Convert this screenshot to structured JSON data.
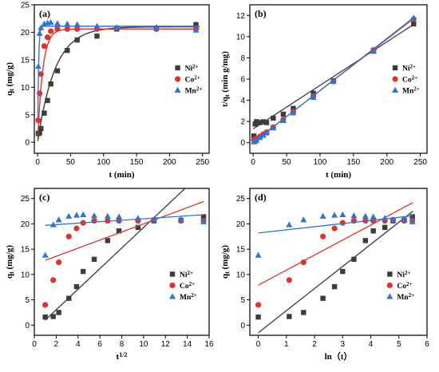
{
  "colors": {
    "ni": "#3c3c3c",
    "co": "#e0332e",
    "mn": "#2e74d6"
  },
  "chart_data": [
    {
      "panel": "(a)",
      "type": "scatter",
      "xlabel": "t (min)",
      "ylabel_html": "q<sub>t</sub> (mg/g)",
      "ylabel": "qt (mg/g)",
      "xlim": [
        -5,
        260
      ],
      "ylim": [
        -2,
        25
      ],
      "xticks": [
        0,
        50,
        100,
        150,
        200,
        250
      ],
      "yticks": [
        0,
        5,
        10,
        15,
        20,
        25
      ],
      "legend": "right-middle",
      "series": [
        {
          "name": "Ni2+",
          "marker": "square",
          "color": "#3c3c3c",
          "x": [
            1,
            3,
            5,
            10,
            15,
            20,
            30,
            45,
            60,
            90,
            120,
            180,
            240
          ],
          "y": [
            1.6,
            1.7,
            2.5,
            5.3,
            7.6,
            10.6,
            13.0,
            16.7,
            18.6,
            19.3,
            20.6,
            20.7,
            21.4
          ],
          "curve": {
            "type": "pfo",
            "qe": 21.0,
            "k": 0.038
          }
        },
        {
          "name": "Co2+",
          "marker": "circle",
          "color": "#e0332e",
          "x": [
            1,
            3,
            5,
            10,
            15,
            20,
            30,
            45,
            60,
            90,
            120,
            180,
            240
          ],
          "y": [
            4.0,
            8.9,
            12.4,
            17.5,
            19.1,
            20.2,
            20.6,
            20.6,
            20.6,
            20.6,
            20.8,
            20.6,
            20.6
          ],
          "curve": {
            "type": "pfo",
            "qe": 20.6,
            "k": 0.13
          }
        },
        {
          "name": "Mn2+",
          "marker": "triangle",
          "color": "#2e74d6",
          "x": [
            1,
            3,
            5,
            10,
            15,
            20,
            30,
            45,
            60,
            90,
            120,
            180,
            240
          ],
          "y": [
            13.8,
            19.8,
            20.8,
            21.5,
            21.7,
            21.8,
            21.6,
            21.5,
            21.4,
            21.1,
            20.8,
            20.9,
            20.4
          ],
          "curve": {
            "type": "pfo",
            "qe": 21.1,
            "k": 0.75
          }
        }
      ]
    },
    {
      "panel": "(b)",
      "type": "scatter",
      "xlabel": "t (min)",
      "ylabel_html": "t/q<sub>t</sub> (min g/mg)",
      "ylabel": "t/qt (min g/mg)",
      "xlim": [
        -5,
        260
      ],
      "ylim": [
        -1,
        13
      ],
      "xticks": [
        0,
        50,
        100,
        150,
        200,
        250
      ],
      "yticks": [
        0,
        2,
        4,
        6,
        8,
        10,
        12
      ],
      "legend": "right-middle",
      "series": [
        {
          "name": "Ni2+",
          "marker": "square",
          "color": "#3c3c3c",
          "x": [
            1,
            3,
            5,
            10,
            15,
            20,
            30,
            45,
            60,
            90,
            120,
            180,
            240
          ],
          "y": [
            0.63,
            1.76,
            1.98,
            1.89,
            1.97,
            1.89,
            2.31,
            2.69,
            3.23,
            4.66,
            5.83,
            8.7,
            11.2
          ],
          "line": [
            [
              0,
              1.3
            ],
            [
              240,
              11.15
            ]
          ]
        },
        {
          "name": "Co2+",
          "marker": "circle",
          "color": "#e0332e",
          "x": [
            1,
            3,
            5,
            10,
            15,
            20,
            30,
            45,
            60,
            90,
            120,
            180,
            240
          ],
          "y": [
            0.25,
            0.34,
            0.4,
            0.57,
            0.79,
            0.99,
            1.46,
            2.18,
            2.91,
            4.37,
            5.77,
            8.74,
            11.65
          ],
          "line": [
            [
              0,
              0.05
            ],
            [
              240,
              11.7
            ]
          ]
        },
        {
          "name": "Mn2+",
          "marker": "triangle",
          "color": "#2e74d6",
          "x": [
            1,
            3,
            5,
            10,
            15,
            20,
            30,
            45,
            60,
            90,
            120,
            180,
            240
          ],
          "y": [
            0.07,
            0.15,
            0.24,
            0.47,
            0.69,
            0.92,
            1.39,
            2.09,
            2.8,
            4.27,
            5.77,
            8.61,
            11.76
          ],
          "line": [
            [
              0,
              0.0
            ],
            [
              240,
              11.8
            ]
          ]
        }
      ]
    },
    {
      "panel": "(c)",
      "type": "scatter",
      "xlabel_html": "t<sup>1/2</sup>",
      "xlabel": "t1/2",
      "ylabel_html": "q<sub>t</sub> (mg/g)",
      "ylabel": "qt (mg/g)",
      "xlim": [
        0,
        16
      ],
      "ylim": [
        -2,
        27
      ],
      "xticks": [
        0,
        2,
        4,
        6,
        8,
        10,
        12,
        14,
        16
      ],
      "yticks": [
        0,
        5,
        10,
        15,
        20,
        25
      ],
      "legend": "right-lower",
      "series": [
        {
          "name": "Ni2+",
          "marker": "square",
          "color": "#3c3c3c",
          "x": [
            1.0,
            1.73,
            2.24,
            3.16,
            3.87,
            4.47,
            5.48,
            6.71,
            7.75,
            9.49,
            10.95,
            13.42,
            15.49
          ],
          "y": [
            1.6,
            1.7,
            2.5,
            5.3,
            7.6,
            10.6,
            13.0,
            16.7,
            18.6,
            19.3,
            20.6,
            20.7,
            21.4
          ],
          "line": [
            [
              1.0,
              1.0
            ],
            [
              13.8,
              27
            ]
          ]
        },
        {
          "name": "Co2+",
          "marker": "circle",
          "color": "#e0332e",
          "x": [
            1.0,
            1.73,
            2.24,
            3.16,
            3.87,
            4.47,
            5.48,
            6.71,
            7.75,
            9.49,
            10.95,
            13.42,
            15.49
          ],
          "y": [
            4.0,
            8.9,
            12.4,
            17.5,
            19.1,
            20.2,
            20.6,
            20.6,
            20.6,
            20.6,
            20.8,
            20.6,
            20.6
          ],
          "line": [
            [
              1.0,
              12.8
            ],
            [
              15.5,
              24.4
            ]
          ]
        },
        {
          "name": "Mn2+",
          "marker": "triangle",
          "color": "#2e74d6",
          "x": [
            1.0,
            1.73,
            2.24,
            3.16,
            3.87,
            4.47,
            5.48,
            6.71,
            7.75,
            9.49,
            10.95,
            13.42,
            15.49
          ],
          "y": [
            13.8,
            19.8,
            20.8,
            21.5,
            21.7,
            21.8,
            21.6,
            21.5,
            21.4,
            21.1,
            20.8,
            20.9,
            20.4
          ],
          "line": [
            [
              1.0,
              19.7
            ],
            [
              15.5,
              21.8
            ]
          ]
        }
      ]
    },
    {
      "panel": "(d)",
      "type": "scatter",
      "xlabel": "ln（t）",
      "ylabel_html": "q<sub>t</sub> (mg/g)",
      "ylabel": "qt (mg/g)",
      "xlim": [
        -0.3,
        6
      ],
      "ylim": [
        -2,
        27
      ],
      "xticks": [
        0,
        1,
        2,
        3,
        4,
        5,
        6
      ],
      "yticks": [
        0,
        5,
        10,
        15,
        20,
        25
      ],
      "legend": "right-lower",
      "series": [
        {
          "name": "Ni2+",
          "marker": "square",
          "color": "#3c3c3c",
          "x": [
            0,
            1.1,
            1.61,
            2.3,
            2.71,
            3.0,
            3.4,
            3.81,
            4.09,
            4.5,
            4.79,
            5.19,
            5.48
          ],
          "y": [
            1.6,
            1.7,
            2.5,
            5.3,
            7.6,
            10.6,
            13.0,
            16.7,
            18.6,
            19.3,
            20.6,
            20.7,
            21.4
          ],
          "line": [
            [
              0,
              -1.5
            ],
            [
              5.5,
              22.5
            ]
          ]
        },
        {
          "name": "Co2+",
          "marker": "circle",
          "color": "#e0332e",
          "x": [
            0,
            1.1,
            1.61,
            2.3,
            2.71,
            3.0,
            3.4,
            3.81,
            4.09,
            4.5,
            4.79,
            5.19,
            5.48
          ],
          "y": [
            4.0,
            8.9,
            12.4,
            17.5,
            19.1,
            20.2,
            20.6,
            20.6,
            20.6,
            20.6,
            20.8,
            20.6,
            20.6
          ],
          "line": [
            [
              0,
              7.9
            ],
            [
              5.5,
              24.2
            ]
          ]
        },
        {
          "name": "Mn2+",
          "marker": "triangle",
          "color": "#2e74d6",
          "x": [
            0,
            1.1,
            1.61,
            2.3,
            2.71,
            3.0,
            3.4,
            3.81,
            4.09,
            4.5,
            4.79,
            5.19,
            5.48
          ],
          "y": [
            13.8,
            19.8,
            20.8,
            21.5,
            21.7,
            21.8,
            21.6,
            21.5,
            21.4,
            21.1,
            20.8,
            20.9,
            20.4
          ],
          "line": [
            [
              0,
              18.2
            ],
            [
              5.5,
              21.6
            ]
          ]
        }
      ]
    }
  ]
}
